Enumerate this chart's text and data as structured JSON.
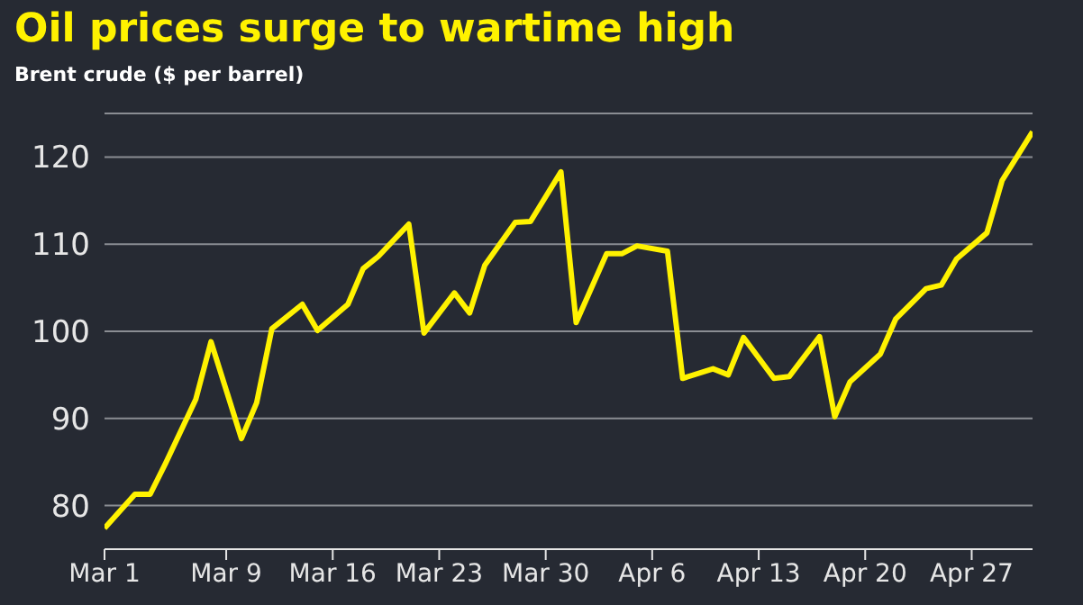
{
  "chart_data": {
    "type": "line",
    "title": "Oil prices surge to wartime high",
    "subtitle": "Brent crude ($ per barrel)",
    "x": [
      "--03-01",
      "--03-03",
      "--03-04",
      "--03-05",
      "--03-07",
      "--03-08",
      "--03-10",
      "--03-11",
      "--03-12",
      "--03-14",
      "--03-15",
      "--03-17",
      "--03-18",
      "--03-19",
      "--03-21",
      "--03-22",
      "--03-24",
      "--03-25",
      "--03-26",
      "--03-28",
      "--03-29",
      "--03-31",
      "--04-01",
      "--04-03",
      "--04-04",
      "--04-05",
      "--04-07",
      "--04-08",
      "--04-10",
      "--04-11",
      "--04-12",
      "--04-14",
      "--04-15",
      "--04-17",
      "--04-18",
      "--04-19",
      "--04-21",
      "--04-22",
      "--04-24",
      "--04-25",
      "--04-26",
      "--04-28",
      "--04-29",
      "--05-01"
    ],
    "series": [
      {
        "color": "#fff200",
        "values": [
          77.4,
          81.3,
          81.3,
          84.8,
          92.2,
          98.8,
          87.7,
          91.8,
          100.3,
          103.1,
          100.1,
          103.1,
          107.2,
          108.6,
          112.3,
          99.8,
          104.4,
          102.1,
          107.6,
          112.5,
          112.6,
          118.3,
          101,
          108.9,
          108.9,
          109.8,
          109.2,
          94.6,
          95.7,
          95,
          99.3,
          94.6,
          94.8,
          99.4,
          90.2,
          94.2,
          97.4,
          101.4,
          104.9,
          105.3,
          108.3,
          111.3,
          117.3,
          122.9
        ]
      }
    ],
    "xlim": [
      "--03-01",
      "--05-01"
    ],
    "xticks": [
      {
        "value": "--03-01",
        "label": "Mar 1"
      },
      {
        "value": "--03-09",
        "label": "Mar 9"
      },
      {
        "value": "--03-16",
        "label": "Mar 16"
      },
      {
        "value": "--03-23",
        "label": "Mar 23"
      },
      {
        "value": "--03-30",
        "label": "Mar 30"
      },
      {
        "value": "--04-06",
        "label": "Apr 6"
      },
      {
        "value": "--04-13",
        "label": "Apr 13"
      },
      {
        "value": "--04-20",
        "label": "Apr 20"
      },
      {
        "value": "--04-27",
        "label": "Apr 27"
      }
    ],
    "ylim": [
      75,
      125
    ],
    "yticks": [
      80,
      90,
      100,
      110,
      120
    ],
    "grid": "y",
    "marker": "none",
    "line_style": "solid"
  }
}
